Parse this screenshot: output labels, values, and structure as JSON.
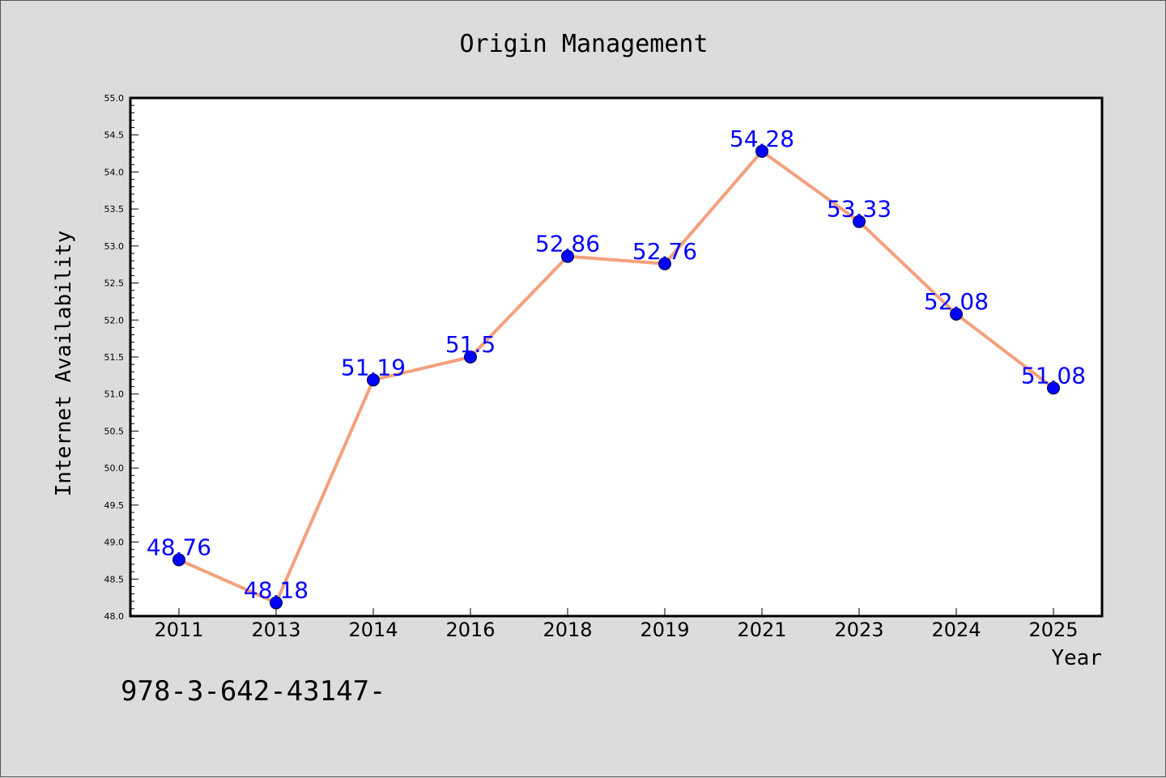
{
  "chart_data": {
    "type": "line",
    "title": "Origin Management",
    "xlabel": "Year",
    "ylabel": "Internet Availability",
    "categories": [
      "2011",
      "2013",
      "2014",
      "2016",
      "2018",
      "2019",
      "2021",
      "2023",
      "2024",
      "2025"
    ],
    "series": [
      {
        "values": [
          48.76,
          48.18,
          51.19,
          51.5,
          52.86,
          52.76,
          54.28,
          53.33,
          52.08,
          51.08
        ],
        "labels": [
          "48.76",
          "48.18",
          "51.19",
          "51.5",
          "52.86",
          "52.76",
          "54.28",
          "53.33",
          "52.08",
          "51.08"
        ],
        "line_color": "#f4a07c",
        "marker_color": "#0000ff"
      }
    ],
    "ylim": [
      48.0,
      55.0
    ],
    "yticks": [
      "48.0",
      "48.5",
      "49.0",
      "49.5",
      "50.0",
      "50.5",
      "51.0",
      "51.5",
      "52.0",
      "52.5",
      "53.0",
      "53.5",
      "54.0",
      "54.5",
      "55.0"
    ],
    "grid": false,
    "legend": "none"
  },
  "footer_text": "978-3-642-43147-",
  "colors": {
    "background": "#dcdcdc",
    "plot_background": "#ffffff",
    "label_color": "#0000ff"
  }
}
